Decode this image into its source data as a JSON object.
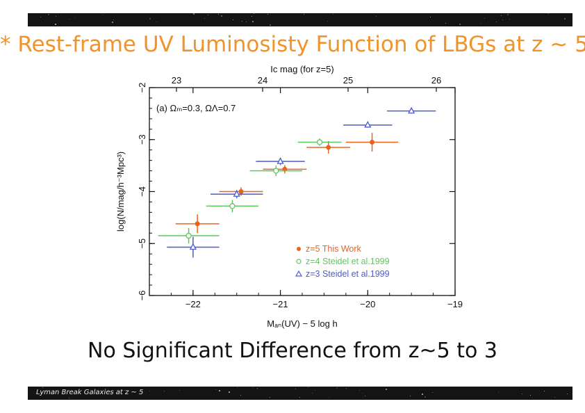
{
  "slide": {
    "title": "* Rest-frame UV Luminosisty Function of LBGs at z ~ 5",
    "caption": "No Significant Difference from z~5 to 3",
    "footer": "Lyman Break Galaxies at z ~ 5",
    "title_color": "#f0932a",
    "bar_color": "#141414"
  },
  "chart_data": {
    "type": "scatter",
    "top_axis": {
      "label": "I_c mag (for z=5)",
      "ticks": [
        "23",
        "24",
        "25",
        "26"
      ]
    },
    "xlabel": "M_AB(UV) - 5 log h",
    "ylabel": "log(N/mag/h^-3 Mpc^3)",
    "xlim": [
      -22.5,
      -19
    ],
    "ylim": [
      -6,
      -2
    ],
    "xticks": [
      -22,
      -21,
      -20,
      -19
    ],
    "yticks": [
      -2,
      -3,
      -4,
      -5,
      -6
    ],
    "annotation": "(a) Ω_M=0.3, Ω_Λ=0.7",
    "legend_position": "lower-right",
    "series": [
      {
        "name": "z=5 This Work",
        "marker": "filled-circle",
        "color": "#e8641e",
        "points": [
          {
            "x": -21.95,
            "y": -4.62,
            "xerr": 0.25,
            "yerr": 0.18
          },
          {
            "x": -21.45,
            "y": -4.0,
            "xerr": 0.25,
            "yerr": 0.08
          },
          {
            "x": -20.95,
            "y": -3.57,
            "xerr": 0.25,
            "yerr": 0.08
          },
          {
            "x": -20.45,
            "y": -3.15,
            "xerr": 0.25,
            "yerr": 0.12
          },
          {
            "x": -19.95,
            "y": -3.05,
            "xerr": 0.3,
            "yerr": 0.18
          }
        ]
      },
      {
        "name": "z=4 Steidel et al.1999",
        "marker": "open-circle",
        "color": "#5cc85c",
        "points": [
          {
            "x": -22.05,
            "y": -4.85,
            "xerr": 0.35,
            "yerr": 0.15
          },
          {
            "x": -21.55,
            "y": -4.28,
            "xerr": 0.3,
            "yerr": 0.12
          },
          {
            "x": -21.05,
            "y": -3.6,
            "xerr": 0.3,
            "yerr": 0.1
          },
          {
            "x": -20.55,
            "y": -3.05,
            "xerr": 0.25,
            "yerr": 0.07
          }
        ]
      },
      {
        "name": "z=3 Steidel et al.1999",
        "marker": "open-triangle",
        "color": "#4a5ad4",
        "points": [
          {
            "x": -22.0,
            "y": -5.07,
            "xerr": 0.3,
            "yerr": 0.2
          },
          {
            "x": -21.5,
            "y": -4.05,
            "xerr": 0.3,
            "yerr": 0.08
          },
          {
            "x": -21.0,
            "y": -3.42,
            "xerr": 0.28,
            "yerr": 0.07
          },
          {
            "x": -20.0,
            "y": -2.72,
            "xerr": 0.28,
            "yerr": 0.05
          },
          {
            "x": -19.5,
            "y": -2.45,
            "xerr": 0.28,
            "yerr": 0.05
          }
        ]
      }
    ]
  }
}
